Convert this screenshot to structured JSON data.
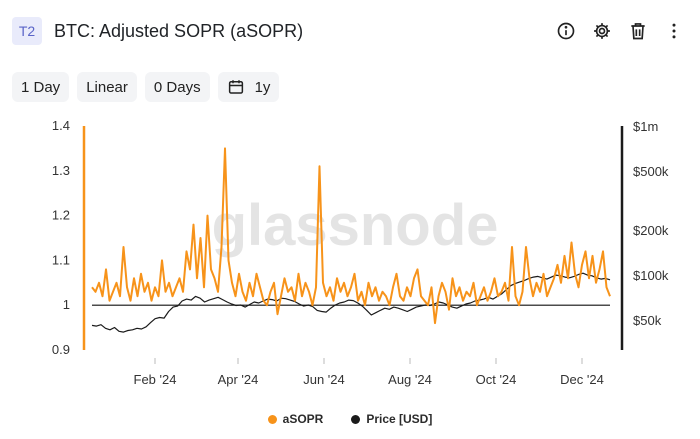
{
  "header": {
    "tag": "T2",
    "title": "BTC: Adjusted SOPR (aSOPR)",
    "icons": [
      "info-icon",
      "gear-icon",
      "trash-icon",
      "more-vertical-icon"
    ]
  },
  "toolbar": {
    "resolution": "1 Day",
    "scale": "Linear",
    "sma": "0 Days",
    "range": "1y",
    "range_icon": "calendar-icon"
  },
  "watermark": "glassnode",
  "chart_data": {
    "type": "line",
    "title": "BTC: Adjusted SOPR (aSOPR)",
    "x_ticks": [
      "Feb '24",
      "Apr '24",
      "Jun '24",
      "Aug '24",
      "Oct '24",
      "Dec '24"
    ],
    "x_range": [
      "2024-01-08",
      "2024-12-31"
    ],
    "y_left": {
      "ticks": [
        "0.9",
        "1",
        "1.1",
        "1.2",
        "1.3",
        "1.4"
      ],
      "lim": [
        0.9,
        1.4
      ]
    },
    "y_right": {
      "ticks": [
        "$50k",
        "$100k",
        "$200k",
        "$500k",
        "$1m"
      ],
      "scale": "log"
    },
    "reference_line": 1,
    "series": [
      {
        "name": "aSOPR",
        "color": "#f7931a",
        "axis": "left",
        "values": [
          1.04,
          1.03,
          1.05,
          1.02,
          1.08,
          1.01,
          1.03,
          1.05,
          1.02,
          1.13,
          1.04,
          1.01,
          1.06,
          1.02,
          1.07,
          1.03,
          1.05,
          1.01,
          1.04,
          1.02,
          1.1,
          1.03,
          1.05,
          1.02,
          1.04,
          1.06,
          1.03,
          1.12,
          1.08,
          1.18,
          1.06,
          1.15,
          1.04,
          1.2,
          1.08,
          1.06,
          1.03,
          1.13,
          1.35,
          1.1,
          1.05,
          1.02,
          1.07,
          1.03,
          1.01,
          1.05,
          1.02,
          1.07,
          1.04,
          1.01,
          1.0,
          1.03,
          1.05,
          0.98,
          1.02,
          1.06,
          1.03,
          1.04,
          1.01,
          1.07,
          1.02,
          1.05,
          1.03,
          1.0,
          1.04,
          1.31,
          1.05,
          1.02,
          1.04,
          1.01,
          1.06,
          1.03,
          1.05,
          1.02,
          1.04,
          1.07,
          1.01,
          1.03,
          1.0,
          1.05,
          1.02,
          1.04,
          1.01,
          1.03,
          1.02,
          1.0,
          1.04,
          1.07,
          1.02,
          1.01,
          1.04,
          1.02,
          1.06,
          1.08,
          1.02,
          1.01,
          1.0,
          1.04,
          0.96,
          1.02,
          1.05,
          1.03,
          0.99,
          1.06,
          1.02,
          1.04,
          1.01,
          1.03,
          1.02,
          1.05,
          1.0,
          1.02,
          1.04,
          1.01,
          1.03,
          1.06,
          1.02,
          1.03,
          1.05,
          1.01,
          1.13,
          1.02,
          1.0,
          1.03,
          1.13,
          1.06,
          1.02,
          1.05,
          1.03,
          1.07,
          1.02,
          1.04,
          1.06,
          1.09,
          1.05,
          1.11,
          1.06,
          1.14,
          1.07,
          1.04,
          1.09,
          1.12,
          1.06,
          1.11,
          1.05,
          1.08,
          1.12,
          1.04,
          1.02
        ]
      },
      {
        "name": "Price [USD]",
        "color": "#1b1b1b",
        "axis": "right",
        "values": [
          46000,
          45500,
          46500,
          44000,
          43000,
          44500,
          42000,
          41500,
          42500,
          43000,
          44000,
          43500,
          45000,
          48000,
          51000,
          52000,
          51500,
          57000,
          61000,
          62000,
          67000,
          69000,
          68000,
          72000,
          70000,
          66000,
          68000,
          69500,
          71000,
          68500,
          66000,
          64000,
          62500,
          63000,
          61000,
          63500,
          66000,
          65000,
          67000,
          69000,
          68500,
          67000,
          70000,
          69500,
          68000,
          66500,
          64000,
          62000,
          63000,
          61500,
          58000,
          57000,
          56500,
          60000,
          63000,
          65000,
          66000,
          68000,
          67500,
          65000,
          62000,
          58000,
          54000,
          56000,
          58000,
          60000,
          59000,
          61000,
          60000,
          58500,
          57000,
          59000,
          61000,
          62000,
          63000,
          62500,
          64000,
          66000,
          65000,
          63000,
          61000,
          60000,
          62000,
          64000,
          65000,
          67000,
          68000,
          69000,
          71000,
          69000,
          72000,
          75000,
          80000,
          85000,
          88000,
          90000,
          92000,
          95000,
          97000,
          98000,
          96000,
          94000,
          97000,
          100000,
          99000,
          97000,
          96000,
          98000,
          101000,
          103000,
          100000,
          99000,
          96000,
          94000,
          95000,
          93000
        ]
      }
    ],
    "legend": {
      "position": "bottom",
      "items": [
        "aSOPR",
        "Price [USD]"
      ]
    },
    "grid": false
  }
}
